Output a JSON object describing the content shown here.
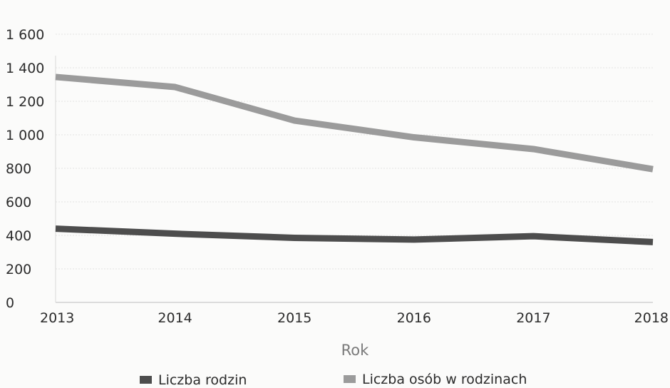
{
  "chart_data": {
    "type": "line",
    "title": "",
    "xlabel": "Rok",
    "ylabel": "",
    "categories": [
      "2013",
      "2014",
      "2015",
      "2016",
      "2017",
      "2018"
    ],
    "ylim": [
      0,
      1600
    ],
    "y_ticks": [
      0,
      200,
      400,
      600,
      800,
      1000,
      1200,
      1400,
      1600
    ],
    "y_tick_labels": [
      "0",
      "200",
      "400",
      "600",
      "800",
      "1 000",
      "1 200",
      "1 400",
      "1 600"
    ],
    "grid": true,
    "legend": "bottom",
    "series": [
      {
        "name": "Liczba rodzin",
        "values": [
          440,
          410,
          385,
          375,
          395,
          360
        ],
        "color": "#4d4d4d"
      },
      {
        "name": "Liczba osób w rodzinach",
        "values": [
          1345,
          1285,
          1085,
          985,
          915,
          795
        ],
        "color": "#9b9b9b"
      }
    ]
  }
}
